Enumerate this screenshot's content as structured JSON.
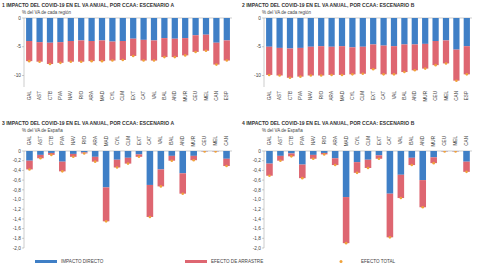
{
  "chart_data": [
    {
      "type": "bar",
      "title": "1   IMPACTO DEL COVID-19 EN EL VA ANUAL, POR CCAA: ESCENARIO A",
      "subtitle": "% del VA de cada región",
      "categories": [
        "GAL",
        "AST",
        "CTB",
        "PVA",
        "NAV",
        "RIO",
        "ARA",
        "MAD",
        "CYL",
        "CLM",
        "EXT",
        "CAT",
        "VAL",
        "BAL",
        "AND",
        "MUR",
        "CEU",
        "MEL",
        "CAN",
        "ESP"
      ],
      "stacked": true,
      "legend": "bottom",
      "ylim": [
        -12,
        0
      ],
      "yticks": [
        -10,
        -5,
        0
      ],
      "series": [
        {
          "name": "IMPACTO DIRECTO",
          "color": "#3f7fc6",
          "values": [
            -4.0,
            -4.2,
            -4.3,
            -4.2,
            -4.0,
            -3.9,
            -4.0,
            -3.9,
            -4.1,
            -4.0,
            -3.6,
            -3.8,
            -3.9,
            -3.5,
            -3.6,
            -3.5,
            -3.0,
            -2.9,
            -4.3,
            -3.9
          ]
        },
        {
          "name": "EFECTO DE ARRASTRE",
          "color": "#de6671",
          "values": [
            -3.5,
            -3.4,
            -3.7,
            -3.6,
            -3.6,
            -3.7,
            -3.5,
            -3.6,
            -3.3,
            -3.3,
            -3.0,
            -3.6,
            -3.5,
            -3.3,
            -3.2,
            -3.0,
            -2.9,
            -2.8,
            -3.8,
            -3.5
          ]
        },
        {
          "name": "EFECTO TOTAL",
          "color": "#f0a23a",
          "type": "scatter",
          "marker": "circle",
          "values": [
            -7.5,
            -7.6,
            -8.0,
            -7.8,
            -7.6,
            -7.6,
            -7.5,
            -7.5,
            -7.4,
            -7.3,
            -6.6,
            -7.4,
            -7.4,
            -6.8,
            -6.8,
            -6.5,
            -5.9,
            -5.7,
            -8.1,
            -7.4
          ]
        }
      ]
    },
    {
      "type": "bar",
      "title": "2   IMPACTO DEL COVID-19 EN EL VA ANUAL, POR CCAA: ESCENARIO B",
      "subtitle": "% del VA de cada región",
      "categories": [
        "GAL",
        "AST",
        "CTB",
        "PVA",
        "NAV",
        "RIO",
        "ARA",
        "MAD",
        "CYL",
        "CLM",
        "EXT",
        "CAT",
        "VAL",
        "BAL",
        "AND",
        "MUR",
        "CEU",
        "MEL",
        "CAN",
        "ESP"
      ],
      "stacked": true,
      "ylim": [
        -12,
        0
      ],
      "yticks": [
        -10,
        -5,
        0
      ],
      "series": [
        {
          "color": "#3f7fc6",
          "values": [
            -5.0,
            -5.2,
            -5.3,
            -5.2,
            -5.0,
            -4.9,
            -5.0,
            -4.9,
            -5.1,
            -5.0,
            -4.6,
            -4.8,
            -4.9,
            -4.6,
            -4.6,
            -4.5,
            -4.0,
            -3.9,
            -5.5,
            -4.9
          ]
        },
        {
          "color": "#de6671",
          "values": [
            -4.9,
            -4.8,
            -5.1,
            -5.0,
            -5.0,
            -5.1,
            -4.9,
            -5.0,
            -4.7,
            -4.7,
            -4.3,
            -5.0,
            -4.9,
            -4.8,
            -4.5,
            -4.3,
            -4.2,
            -4.0,
            -5.4,
            -4.9
          ]
        },
        {
          "color": "#f0a23a",
          "type": "scatter",
          "marker": "circle",
          "values": [
            -9.9,
            -10.0,
            -10.4,
            -10.2,
            -10.0,
            -10.0,
            -9.9,
            -9.9,
            -9.8,
            -9.7,
            -8.9,
            -9.8,
            -9.8,
            -9.4,
            -9.1,
            -8.8,
            -8.2,
            -7.9,
            -10.9,
            -9.8
          ]
        }
      ]
    },
    {
      "type": "bar",
      "title": "3   IMPACTO DEL COVID-19 EN EL VA ANUAL, POR CCAA: ESCENARIO A",
      "subtitle": "% del VA de España",
      "categories": [
        "GAL",
        "AST",
        "CTB",
        "PVA",
        "NAV",
        "RIO",
        "ARA",
        "MAD",
        "CYL",
        "CLM",
        "EXT",
        "CAT",
        "VAL",
        "BAL",
        "AND",
        "MUR",
        "CEU",
        "MEL",
        "CAN"
      ],
      "stacked": true,
      "ylim": [
        -2,
        0
      ],
      "yticks": [
        0,
        {
          "value": -0.2,
          "label": "-0,2"
        },
        {
          "value": -0.4,
          "label": "-0,4"
        },
        {
          "value": -0.6,
          "label": "-0,6"
        },
        {
          "value": -0.8,
          "label": "-0,8"
        },
        {
          "value": -1.0,
          "label": "-1,0"
        },
        {
          "value": -1.2,
          "label": "-1,2"
        },
        {
          "value": -1.4,
          "label": "-1,4"
        },
        {
          "value": -1.6,
          "label": "-1,6"
        },
        {
          "value": -1.8,
          "label": "-1,8"
        },
        {
          "value": -2.0,
          "label": "-2,0"
        }
      ],
      "series": [
        {
          "color": "#3f7fc6",
          "values": [
            -0.2,
            -0.08,
            -0.04,
            -0.22,
            -0.06,
            -0.03,
            -0.12,
            -0.75,
            -0.18,
            -0.14,
            -0.07,
            -0.7,
            -0.38,
            -0.1,
            -0.46,
            -0.1,
            -0.005,
            -0.005,
            -0.16
          ]
        },
        {
          "color": "#de6671",
          "values": [
            -0.18,
            -0.07,
            -0.04,
            -0.2,
            -0.06,
            -0.02,
            -0.1,
            -0.7,
            -0.16,
            -0.12,
            -0.05,
            -0.66,
            -0.35,
            -0.1,
            -0.42,
            -0.09,
            -0.005,
            -0.005,
            -0.15
          ]
        },
        {
          "color": "#f0a23a",
          "type": "scatter",
          "marker": "circle",
          "values": [
            -0.38,
            -0.15,
            -0.08,
            -0.42,
            -0.12,
            -0.05,
            -0.22,
            -1.45,
            -0.34,
            -0.26,
            -0.12,
            -1.36,
            -0.73,
            -0.2,
            -0.88,
            -0.19,
            -0.01,
            -0.01,
            -0.31
          ]
        }
      ]
    },
    {
      "type": "bar",
      "title": "4   IMPACTO DEL COVID-19 EN EL VA ANUAL, POR CCAA: ESCENARIO B",
      "subtitle": "% del VA de España",
      "categories": [
        "GAL",
        "AST",
        "CTB",
        "PVA",
        "NAV",
        "RIO",
        "ARA",
        "MAD",
        "CYL",
        "CLM",
        "EXT",
        "CAT",
        "VAL",
        "BAL",
        "AND",
        "MUR",
        "CEU",
        "MEL",
        "CAN"
      ],
      "stacked": true,
      "ylim": [
        -2,
        0
      ],
      "yticks": [
        0,
        {
          "value": -0.2,
          "label": "-0,2"
        },
        {
          "value": -0.4,
          "label": "-0,4"
        },
        {
          "value": -0.6,
          "label": "-0,6"
        },
        {
          "value": -0.8,
          "label": "-0,8"
        },
        {
          "value": -1.0,
          "label": "-1,0"
        },
        {
          "value": -1.2,
          "label": "-1,2"
        },
        {
          "value": -1.4,
          "label": "-1,4"
        },
        {
          "value": -1.6,
          "label": "-1,6"
        },
        {
          "value": -1.8,
          "label": "-1,8"
        },
        {
          "value": -2.0,
          "label": "-2,0"
        }
      ],
      "series": [
        {
          "color": "#3f7fc6",
          "values": [
            -0.26,
            -0.1,
            -0.05,
            -0.28,
            -0.08,
            -0.04,
            -0.15,
            -0.95,
            -0.23,
            -0.18,
            -0.09,
            -0.88,
            -0.49,
            -0.14,
            -0.6,
            -0.13,
            -0.005,
            -0.005,
            -0.22
          ]
        },
        {
          "color": "#de6671",
          "values": [
            -0.25,
            -0.1,
            -0.06,
            -0.28,
            -0.08,
            -0.03,
            -0.14,
            -0.95,
            -0.22,
            -0.17,
            -0.07,
            -0.9,
            -0.48,
            -0.15,
            -0.56,
            -0.12,
            -0.005,
            -0.005,
            -0.21
          ]
        },
        {
          "color": "#f0a23a",
          "type": "scatter",
          "marker": "circle",
          "values": [
            -0.51,
            -0.2,
            -0.11,
            -0.56,
            -0.16,
            -0.07,
            -0.29,
            -1.9,
            -0.45,
            -0.35,
            -0.16,
            -1.78,
            -0.97,
            -0.29,
            -1.16,
            -0.25,
            -0.01,
            -0.01,
            -0.43
          ]
        }
      ]
    }
  ]
}
